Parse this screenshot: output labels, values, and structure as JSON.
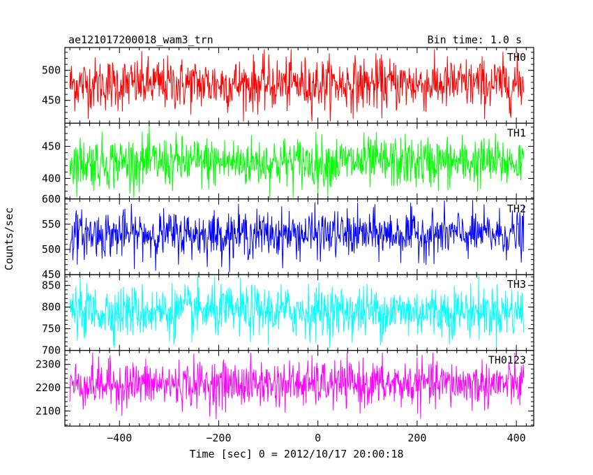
{
  "header": {
    "title": "ae121017200018_wam3_trn",
    "bin_time": "Bin time: 1.0 s"
  },
  "axes": {
    "ylabel": "Counts/sec",
    "xlabel": "Time [sec] 0 = 2012/10/17 20:00:18"
  },
  "chart_data": {
    "type": "line",
    "x_range": [
      -510,
      435
    ],
    "data_x_range": [
      -500,
      415
    ],
    "x_ticks": [
      -400,
      -200,
      0,
      200,
      400
    ],
    "x_tick_labels": [
      "−400",
      "−200",
      "0",
      "200",
      "400"
    ],
    "bin_seconds": 1.0,
    "panels": [
      {
        "label": "TH0",
        "color": "#ff0000",
        "ylim": [
          412,
          538
        ],
        "y_ticks": [
          450,
          500
        ],
        "y_tick_labels": [
          "450",
          "500"
        ],
        "mean": 477,
        "std": 22,
        "min": 415,
        "max": 535
      },
      {
        "label": "TH1",
        "color": "#00ff00",
        "ylim": [
          368,
          486
        ],
        "y_ticks": [
          400,
          450
        ],
        "y_tick_labels": [
          "400",
          "450"
        ],
        "mean": 425,
        "std": 20,
        "min": 370,
        "max": 484
      },
      {
        "label": "TH2",
        "color": "#0000ff",
        "ylim": [
          450,
          600
        ],
        "y_ticks": [
          450,
          500,
          550,
          600
        ],
        "y_tick_labels": [
          "450",
          "500",
          "550",
          "600"
        ],
        "mean": 530,
        "std": 23,
        "min": 455,
        "max": 598
      },
      {
        "label": "TH3",
        "color": "#00ffff",
        "ylim": [
          700,
          875
        ],
        "y_ticks": [
          700,
          750,
          800,
          850
        ],
        "y_tick_labels": [
          "700",
          "750",
          "800",
          "850"
        ],
        "mean": 790,
        "std": 30,
        "min": 705,
        "max": 872
      },
      {
        "label": "TH0123",
        "color": "#ff00ff",
        "ylim": [
          2035,
          2360
        ],
        "y_ticks": [
          2100,
          2200,
          2300
        ],
        "y_tick_labels": [
          "2100",
          "2200",
          "2300"
        ],
        "mean": 2215,
        "std": 50,
        "min": 2040,
        "max": 2350
      }
    ]
  }
}
